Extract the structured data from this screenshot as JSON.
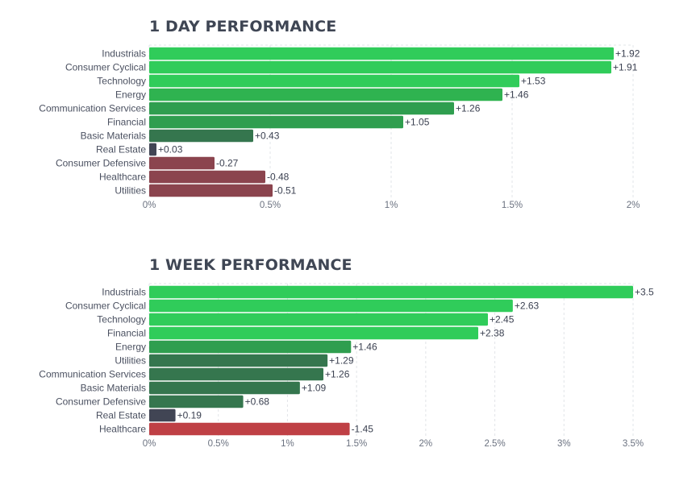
{
  "colors": {
    "strong_green": "#30cc5a",
    "mid_green": "#2f9e4f",
    "dark_green": "#35764e",
    "neutral": "#414554",
    "mild_red": "#8b444e",
    "strong_red": "#bf4045",
    "grid": "#e2e4e8",
    "label": "#4a5060",
    "tick": "#6b7280"
  },
  "chart_data": [
    {
      "type": "bar",
      "orientation": "horizontal",
      "title": "1 DAY PERFORMANCE",
      "categories": [
        "Industrials",
        "Consumer Cyclical",
        "Technology",
        "Energy",
        "Communication Services",
        "Financial",
        "Basic Materials",
        "Real Estate",
        "Consumer Defensive",
        "Healthcare",
        "Utilities"
      ],
      "values": [
        1.92,
        1.91,
        1.53,
        1.46,
        1.26,
        1.05,
        0.43,
        0.03,
        -0.27,
        -0.48,
        -0.51
      ],
      "value_labels": [
        "+1.92",
        "+1.91",
        "+1.53",
        "+1.46",
        "+1.26",
        "+1.05",
        "+0.43",
        "+0.03",
        "-0.27",
        "-0.48",
        "-0.51"
      ],
      "xlim": [
        0,
        2
      ],
      "xticks": [
        0,
        0.5,
        1,
        1.5,
        2
      ],
      "xtick_labels": [
        "0%",
        "0.5%",
        "1%",
        "1.5%",
        "2%"
      ],
      "bar_colors": [
        "#30cc5a",
        "#30cc5a",
        "#30cc5a",
        "#2fb350",
        "#2f9e4f",
        "#2f9e4f",
        "#35764e",
        "#414554",
        "#8b444e",
        "#8b444e",
        "#8b444e"
      ],
      "grid": true,
      "legend": "none"
    },
    {
      "type": "bar",
      "orientation": "horizontal",
      "title": "1 WEEK PERFORMANCE",
      "categories": [
        "Industrials",
        "Consumer Cyclical",
        "Technology",
        "Financial",
        "Energy",
        "Utilities",
        "Communication Services",
        "Basic Materials",
        "Consumer Defensive",
        "Real Estate",
        "Healthcare"
      ],
      "values": [
        3.5,
        2.63,
        2.45,
        2.38,
        1.46,
        1.29,
        1.26,
        1.09,
        0.68,
        0.19,
        -1.45
      ],
      "value_labels": [
        "+3.5",
        "+2.63",
        "+2.45",
        "+2.38",
        "+1.46",
        "+1.29",
        "+1.26",
        "+1.09",
        "+0.68",
        "+0.19",
        "-1.45"
      ],
      "xlim": [
        0,
        3.5
      ],
      "xticks": [
        0,
        0.5,
        1,
        1.5,
        2,
        2.5,
        3,
        3.5
      ],
      "xtick_labels": [
        "0%",
        "0.5%",
        "1%",
        "1.5%",
        "2%",
        "2.5%",
        "3%",
        "3.5%"
      ],
      "bar_colors": [
        "#30cc5a",
        "#30cc5a",
        "#30cc5a",
        "#30cc5a",
        "#2f9e4f",
        "#35764e",
        "#35764e",
        "#35764e",
        "#35764e",
        "#414554",
        "#bf4045"
      ],
      "grid": true,
      "legend": "none"
    }
  ]
}
